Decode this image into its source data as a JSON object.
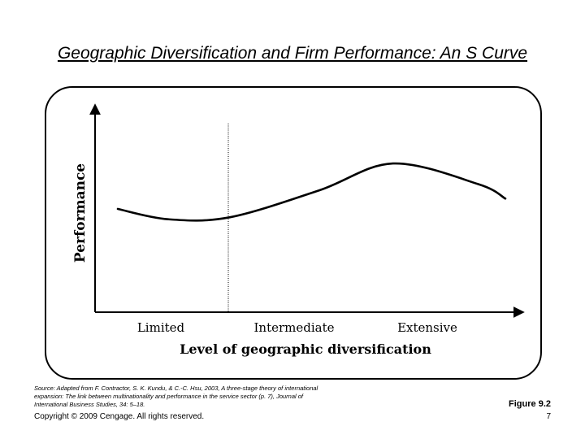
{
  "slide": {
    "title": "Geographic Diversification and Firm Performance: An S Curve",
    "source_note": "Source: Adapted from F. Contractor, S. K. Kundu, & C.-C. Hsu, 2003, A three-stage theory of international expansion: The link between multinationality and performance in the service sector (p. 7), Journal of International Business Studies, 34: 5–18.",
    "copyright": "Copyright © 2009 Cengage. All rights reserved.",
    "figure_label": "Figure 9.2",
    "page_number": "7"
  },
  "diagram": {
    "y_axis_label": "Performance",
    "x_axis_label": "Level of geographic diversification",
    "x_categories": [
      "Limited",
      "Intermediate",
      "Extensive"
    ],
    "curve": [
      {
        "x": 0.0,
        "y": 0.5
      },
      {
        "x": 0.13,
        "y": 0.45
      },
      {
        "x": 0.29,
        "y": 0.46
      },
      {
        "x": 0.52,
        "y": 0.59
      },
      {
        "x": 0.71,
        "y": 0.72
      },
      {
        "x": 0.93,
        "y": 0.62
      },
      {
        "x": 1.0,
        "y": 0.55
      }
    ],
    "divider_x": 0.28
  }
}
